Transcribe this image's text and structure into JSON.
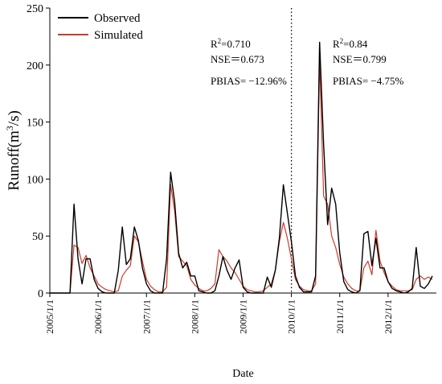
{
  "chart_data": {
    "type": "line",
    "xlabel": "Date",
    "ylabel_text": "Runoff(m",
    "ylabel_sup": "3",
    "ylabel_suffix": "/s)",
    "ylim": [
      0,
      250
    ],
    "yticks": [
      0,
      50,
      100,
      150,
      200,
      250
    ],
    "x_start": "2005-01",
    "x_end": "2012-12",
    "xticks": [
      "2005/1/1",
      "2006/1/1",
      "2007/1/1",
      "2008/1/1",
      "2009/1/1",
      "2010/1/1",
      "2011/1/1",
      "2012/1/1"
    ],
    "divider_date": "2010/1/1",
    "legend_position": "top-left",
    "grid": false,
    "series": [
      {
        "name": "Observed",
        "color": "#000000",
        "values": [
          0,
          0,
          0,
          0,
          0,
          0,
          78,
          30,
          8,
          30,
          30,
          12,
          4,
          1,
          0,
          0,
          0,
          20,
          58,
          25,
          30,
          58,
          46,
          22,
          8,
          2,
          0,
          0,
          0,
          30,
          106,
          80,
          35,
          22,
          27,
          15,
          15,
          2,
          1,
          0,
          0,
          2,
          15,
          32,
          20,
          12,
          22,
          29,
          5,
          1,
          0,
          0,
          0,
          0,
          14,
          5,
          20,
          48,
          95,
          70,
          45,
          15,
          5,
          1,
          1,
          1,
          15,
          220,
          130,
          60,
          92,
          78,
          35,
          10,
          3,
          1,
          0,
          2,
          52,
          54,
          24,
          48,
          22,
          22,
          10,
          4,
          2,
          1,
          0,
          1,
          4,
          40,
          6,
          4,
          8,
          15
        ]
      },
      {
        "name": "Simulated",
        "color": "#cd3b2b",
        "values": [
          0,
          0,
          0,
          0,
          0,
          0,
          42,
          40,
          26,
          33,
          22,
          15,
          8,
          5,
          3,
          2,
          1,
          2,
          15,
          20,
          24,
          50,
          45,
          28,
          12,
          6,
          3,
          1,
          1,
          5,
          95,
          72,
          32,
          28,
          24,
          12,
          7,
          4,
          2,
          2,
          4,
          8,
          38,
          32,
          28,
          22,
          18,
          12,
          6,
          3,
          2,
          1,
          1,
          2,
          5,
          8,
          20,
          45,
          62,
          48,
          30,
          12,
          6,
          3,
          2,
          2,
          8,
          205,
          85,
          78,
          50,
          40,
          25,
          14,
          8,
          4,
          2,
          2,
          22,
          28,
          16,
          55,
          28,
          18,
          10,
          6,
          3,
          2,
          2,
          2,
          3,
          12,
          15,
          12,
          14,
          12
        ]
      }
    ],
    "annotations": [
      {
        "r2_label": "R",
        "r2_sup": "2",
        "r2_value": "=0.710",
        "nse": "NSE＝0.673",
        "pbias": "PBIAS= −12.96%"
      },
      {
        "r2_label": "R",
        "r2_sup": "2",
        "r2_value": "=0.84",
        "nse": "NSE＝0.799",
        "pbias": "PBIAS= −4.75%"
      }
    ]
  }
}
